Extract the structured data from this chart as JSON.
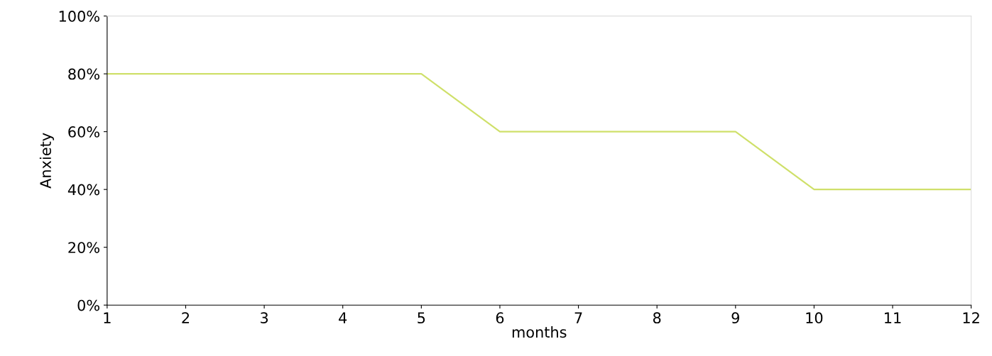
{
  "chart_data": {
    "type": "line",
    "xlabel": "months",
    "ylabel": "Anxiety",
    "x": [
      1,
      2,
      3,
      4,
      5,
      6,
      7,
      8,
      9,
      10,
      11,
      12
    ],
    "series": [
      {
        "color": "#cfe06a",
        "values": [
          80,
          80,
          80,
          80,
          80,
          60,
          60,
          60,
          60,
          40,
          40,
          40
        ]
      }
    ],
    "xlim": [
      1,
      12
    ],
    "xticks": [
      1,
      2,
      3,
      4,
      5,
      6,
      7,
      8,
      9,
      10,
      11,
      12
    ],
    "ylim": [
      0,
      100
    ],
    "yticks": [
      {
        "value": 0,
        "label": "0%"
      },
      {
        "value": 20,
        "label": "20%"
      },
      {
        "value": 40,
        "label": "40%"
      },
      {
        "value": 60,
        "label": "60%"
      },
      {
        "value": 80,
        "label": "80%"
      },
      {
        "value": 100,
        "label": "100%"
      }
    ],
    "grid": false,
    "legend": false,
    "marker": "none",
    "line_style": "solid"
  }
}
